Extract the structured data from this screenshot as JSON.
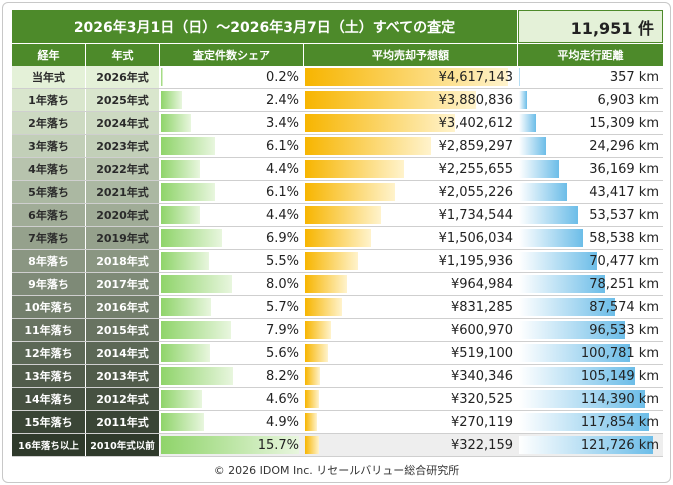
{
  "title": "2026年3月1日（日）～2026年3月7日（土）すべての査定",
  "count": "11,951 件",
  "headers": {
    "age": "経年",
    "year": "年式",
    "share": "査定件数シェア",
    "price": "平均売却予想額",
    "distance": "平均走行距離"
  },
  "footer": "© 2026 IDOM Inc. リセールバリュー総合研究所",
  "chart_data": {
    "type": "table",
    "columns": [
      "経年",
      "年式",
      "査定件数シェア",
      "平均売却予想額",
      "平均走行距離"
    ],
    "rows": [
      {
        "age": "当年式",
        "year": "2026年式",
        "share": 0.2,
        "share_label": "0.2%",
        "price": 4617143,
        "price_label": "¥4,617,143",
        "km": 357,
        "km_label": "357 km"
      },
      {
        "age": "1年落ち",
        "year": "2025年式",
        "share": 2.4,
        "share_label": "2.4%",
        "price": 3880836,
        "price_label": "¥3,880,836",
        "km": 6903,
        "km_label": "6,903 km"
      },
      {
        "age": "2年落ち",
        "year": "2024年式",
        "share": 3.4,
        "share_label": "3.4%",
        "price": 3402612,
        "price_label": "¥3,402,612",
        "km": 15309,
        "km_label": "15,309 km"
      },
      {
        "age": "3年落ち",
        "year": "2023年式",
        "share": 6.1,
        "share_label": "6.1%",
        "price": 2859297,
        "price_label": "¥2,859,297",
        "km": 24296,
        "km_label": "24,296 km"
      },
      {
        "age": "4年落ち",
        "year": "2022年式",
        "share": 4.4,
        "share_label": "4.4%",
        "price": 2255655,
        "price_label": "¥2,255,655",
        "km": 36169,
        "km_label": "36,169 km"
      },
      {
        "age": "5年落ち",
        "year": "2021年式",
        "share": 6.1,
        "share_label": "6.1%",
        "price": 2055226,
        "price_label": "¥2,055,226",
        "km": 43417,
        "km_label": "43,417 km"
      },
      {
        "age": "6年落ち",
        "year": "2020年式",
        "share": 4.4,
        "share_label": "4.4%",
        "price": 1734544,
        "price_label": "¥1,734,544",
        "km": 53537,
        "km_label": "53,537 km"
      },
      {
        "age": "7年落ち",
        "year": "2019年式",
        "share": 6.9,
        "share_label": "6.9%",
        "price": 1506034,
        "price_label": "¥1,506,034",
        "km": 58538,
        "km_label": "58,538 km"
      },
      {
        "age": "8年落ち",
        "year": "2018年式",
        "share": 5.5,
        "share_label": "5.5%",
        "price": 1195936,
        "price_label": "¥1,195,936",
        "km": 70477,
        "km_label": "70,477 km"
      },
      {
        "age": "9年落ち",
        "year": "2017年式",
        "share": 8.0,
        "share_label": "8.0%",
        "price": 964984,
        "price_label": "¥964,984",
        "km": 78251,
        "km_label": "78,251 km"
      },
      {
        "age": "10年落ち",
        "year": "2016年式",
        "share": 5.7,
        "share_label": "5.7%",
        "price": 831285,
        "price_label": "¥831,285",
        "km": 87574,
        "km_label": "87,574 km"
      },
      {
        "age": "11年落ち",
        "year": "2015年式",
        "share": 7.9,
        "share_label": "7.9%",
        "price": 600970,
        "price_label": "¥600,970",
        "km": 96533,
        "km_label": "96,533 km"
      },
      {
        "age": "12年落ち",
        "year": "2014年式",
        "share": 5.6,
        "share_label": "5.6%",
        "price": 519100,
        "price_label": "¥519,100",
        "km": 100781,
        "km_label": "100,781 km"
      },
      {
        "age": "13年落ち",
        "year": "2013年式",
        "share": 8.2,
        "share_label": "8.2%",
        "price": 340346,
        "price_label": "¥340,346",
        "km": 105149,
        "km_label": "105,149 km"
      },
      {
        "age": "14年落ち",
        "year": "2012年式",
        "share": 4.6,
        "share_label": "4.6%",
        "price": 320525,
        "price_label": "¥320,525",
        "km": 114390,
        "km_label": "114,390 km"
      },
      {
        "age": "15年落ち",
        "year": "2011年式",
        "share": 4.9,
        "share_label": "4.9%",
        "price": 270119,
        "price_label": "¥270,119",
        "km": 117854,
        "km_label": "117,854 km"
      },
      {
        "age": "16年落ち以上",
        "year": "2010年式以前",
        "share": 15.7,
        "share_label": "15.7%",
        "price": 322159,
        "price_label": "¥322,159",
        "km": 121726,
        "km_label": "121,726 km"
      }
    ],
    "scale_max": {
      "share": 16.0,
      "price": 4800000,
      "km": 130000
    },
    "colors": {
      "header": "#4d8a2a",
      "share_bar": "#8fd46a",
      "price_bar": "#f7b500",
      "km_bar": "#6cbde8",
      "highlight_row": "#eeeeee",
      "age_col_start": "#e4f1d8",
      "age_col_end": "#2f3a2b"
    }
  }
}
